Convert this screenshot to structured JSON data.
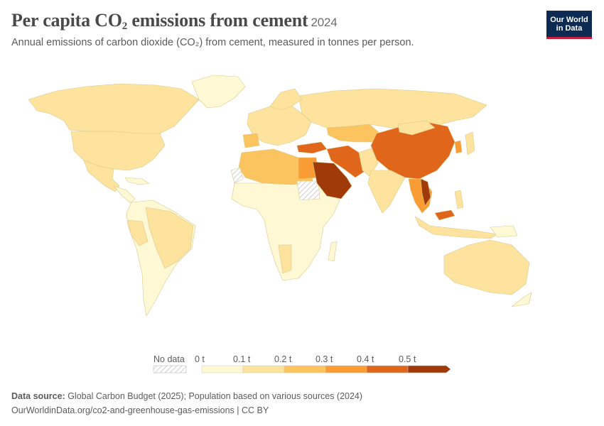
{
  "title": {
    "main": "Per capita CO",
    "subscript": "2",
    "rest": " emissions from cement",
    "year": "2024"
  },
  "subtitle": "Annual emissions of carbon dioxide (CO₂) from cement, measured in tonnes per person.",
  "logo": {
    "line1": "Our World",
    "line2": "in Data"
  },
  "legend": {
    "no_data_label": "No data",
    "ticks": [
      "0 t",
      "0.1 t",
      "0.2 t",
      "0.3 t",
      "0.4 t",
      "0.5 t"
    ],
    "bin_colors": [
      "#fef9d4",
      "#fde39e",
      "#fcc45f",
      "#f89c33",
      "#e0661b",
      "#a13a09"
    ],
    "no_data_color": "hatched-grey"
  },
  "regions": [
    {
      "name": "Canada",
      "bin": 1
    },
    {
      "name": "United States",
      "bin": 1
    },
    {
      "name": "Mexico",
      "bin": 1
    },
    {
      "name": "Greenland",
      "bin": 0
    },
    {
      "name": "South America",
      "bin": 0
    },
    {
      "name": "Brazil",
      "bin": 1
    },
    {
      "name": "Russia",
      "bin": 1
    },
    {
      "name": "Europe",
      "bin": 1
    },
    {
      "name": "Northern Africa",
      "bin": 2
    },
    {
      "name": "Sub-Saharan Africa",
      "bin": 0
    },
    {
      "name": "Saudi Arabia",
      "bin": 5
    },
    {
      "name": "Iran",
      "bin": 4
    },
    {
      "name": "Turkey",
      "bin": 4
    },
    {
      "name": "China",
      "bin": 4
    },
    {
      "name": "Vietnam",
      "bin": 5
    },
    {
      "name": "India",
      "bin": 1
    },
    {
      "name": "Australia",
      "bin": 1
    }
  ],
  "footer": {
    "source_label": "Data source:",
    "source_text": " Global Carbon Budget (2025); Population based on various sources (2024)",
    "url_text": "OurWorldinData.org/co2-and-greenhouse-gas-emissions | CC BY"
  }
}
